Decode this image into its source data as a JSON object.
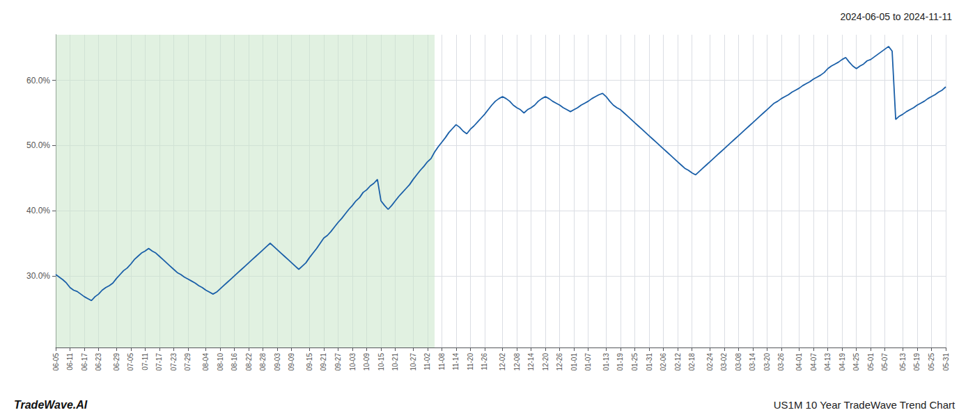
{
  "chart_data": {
    "type": "line",
    "title": "2024-06-05 to 2024-11-11",
    "annotations": [
      "TradeWave.AI",
      "US1M 10 Year TradeWave Trend Chart"
    ],
    "categories": [
      "06-05",
      null,
      null,
      null,
      "06-11",
      null,
      null,
      null,
      "06-17",
      null,
      null,
      null,
      "06-23",
      null,
      null,
      null,
      null,
      "06-29",
      null,
      null,
      null,
      "07-05",
      null,
      null,
      null,
      "07-11",
      null,
      null,
      null,
      "07-17",
      null,
      null,
      null,
      "07-23",
      null,
      null,
      null,
      "07-29",
      null,
      null,
      null,
      null,
      "08-04",
      null,
      null,
      null,
      "08-10",
      null,
      null,
      null,
      "08-16",
      null,
      null,
      null,
      "08-22",
      null,
      null,
      null,
      "08-28",
      null,
      null,
      null,
      "09-03",
      null,
      null,
      null,
      "09-09",
      null,
      null,
      null,
      null,
      "09-15",
      null,
      null,
      null,
      "09-21",
      null,
      null,
      null,
      "09-27",
      null,
      null,
      null,
      "10-03",
      null,
      null,
      null,
      "10-09",
      null,
      null,
      null,
      "10-15",
      null,
      null,
      null,
      "10-21",
      null,
      null,
      null,
      null,
      "10-27",
      null,
      null,
      null,
      "11-02",
      null,
      null,
      null,
      "11-08",
      null,
      null,
      null,
      "11-14",
      null,
      null,
      null,
      "11-20",
      null,
      null,
      null,
      "11-26",
      null,
      null,
      null,
      null,
      "12-02",
      null,
      null,
      null,
      "12-08",
      null,
      null,
      null,
      "12-14",
      null,
      null,
      null,
      "12-20",
      null,
      null,
      null,
      "12-26",
      null,
      null,
      null,
      "01-01",
      null,
      null,
      null,
      "01-07",
      null,
      null,
      null,
      null,
      "01-13",
      null,
      null,
      null,
      "01-19",
      null,
      null,
      null,
      "01-25",
      null,
      null,
      null,
      "01-31",
      null,
      null,
      null,
      "02-06",
      null,
      null,
      null,
      "02-12",
      null,
      null,
      null,
      "02-18",
      null,
      null,
      null,
      null,
      "02-24",
      null,
      null,
      null,
      "03-02",
      null,
      null,
      null,
      "03-08",
      null,
      null,
      null,
      "03-14",
      null,
      null,
      null,
      "03-20",
      null,
      null,
      null,
      "03-26",
      null,
      null,
      null,
      null,
      "04-01",
      null,
      null,
      null,
      "04-07",
      null,
      null,
      null,
      "04-13",
      null,
      null,
      null,
      "04-19",
      null,
      null,
      null,
      "04-25",
      null,
      null,
      null,
      "05-01",
      null,
      null,
      null,
      "05-07",
      null,
      null,
      null,
      null,
      "05-13",
      null,
      null,
      null,
      "05-19",
      null,
      null,
      null,
      "05-25",
      null,
      null,
      null,
      "05-31"
    ],
    "values": [
      0.302,
      0.298,
      0.294,
      0.289,
      0.282,
      0.278,
      0.276,
      0.272,
      0.268,
      0.265,
      0.262,
      0.268,
      0.272,
      0.278,
      0.282,
      0.285,
      0.289,
      0.296,
      0.302,
      0.308,
      0.312,
      0.318,
      0.325,
      0.33,
      0.335,
      0.338,
      0.342,
      0.338,
      0.335,
      0.33,
      0.325,
      0.32,
      0.315,
      0.31,
      0.305,
      0.302,
      0.298,
      0.295,
      0.292,
      0.289,
      0.285,
      0.282,
      0.278,
      0.275,
      0.272,
      0.275,
      0.28,
      0.285,
      0.29,
      0.295,
      0.3,
      0.305,
      0.31,
      0.315,
      0.32,
      0.325,
      0.33,
      0.335,
      0.34,
      0.345,
      0.35,
      0.345,
      0.34,
      0.335,
      0.33,
      0.325,
      0.32,
      0.315,
      0.31,
      0.315,
      0.32,
      0.328,
      0.335,
      0.342,
      0.35,
      0.358,
      0.362,
      0.368,
      0.375,
      0.382,
      0.388,
      0.395,
      0.402,
      0.408,
      0.415,
      0.42,
      0.428,
      0.432,
      0.438,
      0.442,
      0.448,
      0.415,
      0.408,
      0.402,
      0.408,
      0.415,
      0.422,
      0.428,
      0.434,
      0.44,
      0.448,
      0.455,
      0.462,
      0.468,
      0.475,
      0.48,
      0.49,
      0.498,
      0.505,
      0.512,
      0.52,
      0.526,
      0.532,
      0.528,
      0.522,
      0.518,
      0.525,
      0.53,
      0.536,
      0.542,
      0.548,
      0.555,
      0.562,
      0.568,
      0.572,
      0.575,
      0.572,
      0.568,
      0.562,
      0.558,
      0.555,
      0.55,
      0.555,
      0.558,
      0.562,
      0.568,
      0.572,
      0.575,
      0.572,
      0.568,
      0.565,
      0.562,
      0.558,
      0.555,
      0.552,
      0.555,
      0.558,
      0.562,
      0.565,
      0.568,
      0.572,
      0.575,
      0.578,
      0.58,
      0.575,
      0.568,
      0.562,
      0.558,
      0.555,
      0.55,
      0.545,
      0.54,
      0.535,
      0.53,
      0.525,
      0.52,
      0.515,
      0.51,
      0.505,
      0.5,
      0.495,
      0.49,
      0.485,
      0.48,
      0.475,
      0.47,
      0.465,
      0.462,
      0.458,
      0.455,
      0.46,
      0.465,
      0.47,
      0.475,
      0.48,
      0.485,
      0.49,
      0.495,
      0.5,
      0.505,
      0.51,
      0.515,
      0.52,
      0.525,
      0.53,
      0.535,
      0.54,
      0.545,
      0.55,
      0.555,
      0.56,
      0.565,
      0.568,
      0.572,
      0.575,
      0.578,
      0.582,
      0.585,
      0.588,
      0.592,
      0.595,
      0.598,
      0.602,
      0.605,
      0.608,
      0.612,
      0.618,
      0.622,
      0.625,
      0.628,
      0.632,
      0.635,
      0.628,
      0.622,
      0.618,
      0.622,
      0.625,
      0.63,
      0.632,
      0.636,
      0.64,
      0.644,
      0.648,
      0.652,
      0.645,
      0.54,
      0.545,
      0.548,
      0.552,
      0.555,
      0.558,
      0.562,
      0.565,
      0.568,
      0.572,
      0.575,
      0.578,
      0.582,
      0.585,
      0.59
    ],
    "color": "#1a5fa8",
    "shade": {
      "x": [
        0,
        106
      ],
      "color": "#c8e6c8"
    },
    "ylim": [
      0.19,
      0.67
    ],
    "yticks": [
      {
        "value": 0.3,
        "label": "30.0%"
      },
      {
        "value": 0.4,
        "label": "40.0%"
      },
      {
        "value": 0.5,
        "label": "50.0%"
      },
      {
        "value": 0.6,
        "label": "60.0%"
      }
    ],
    "grid": true
  }
}
